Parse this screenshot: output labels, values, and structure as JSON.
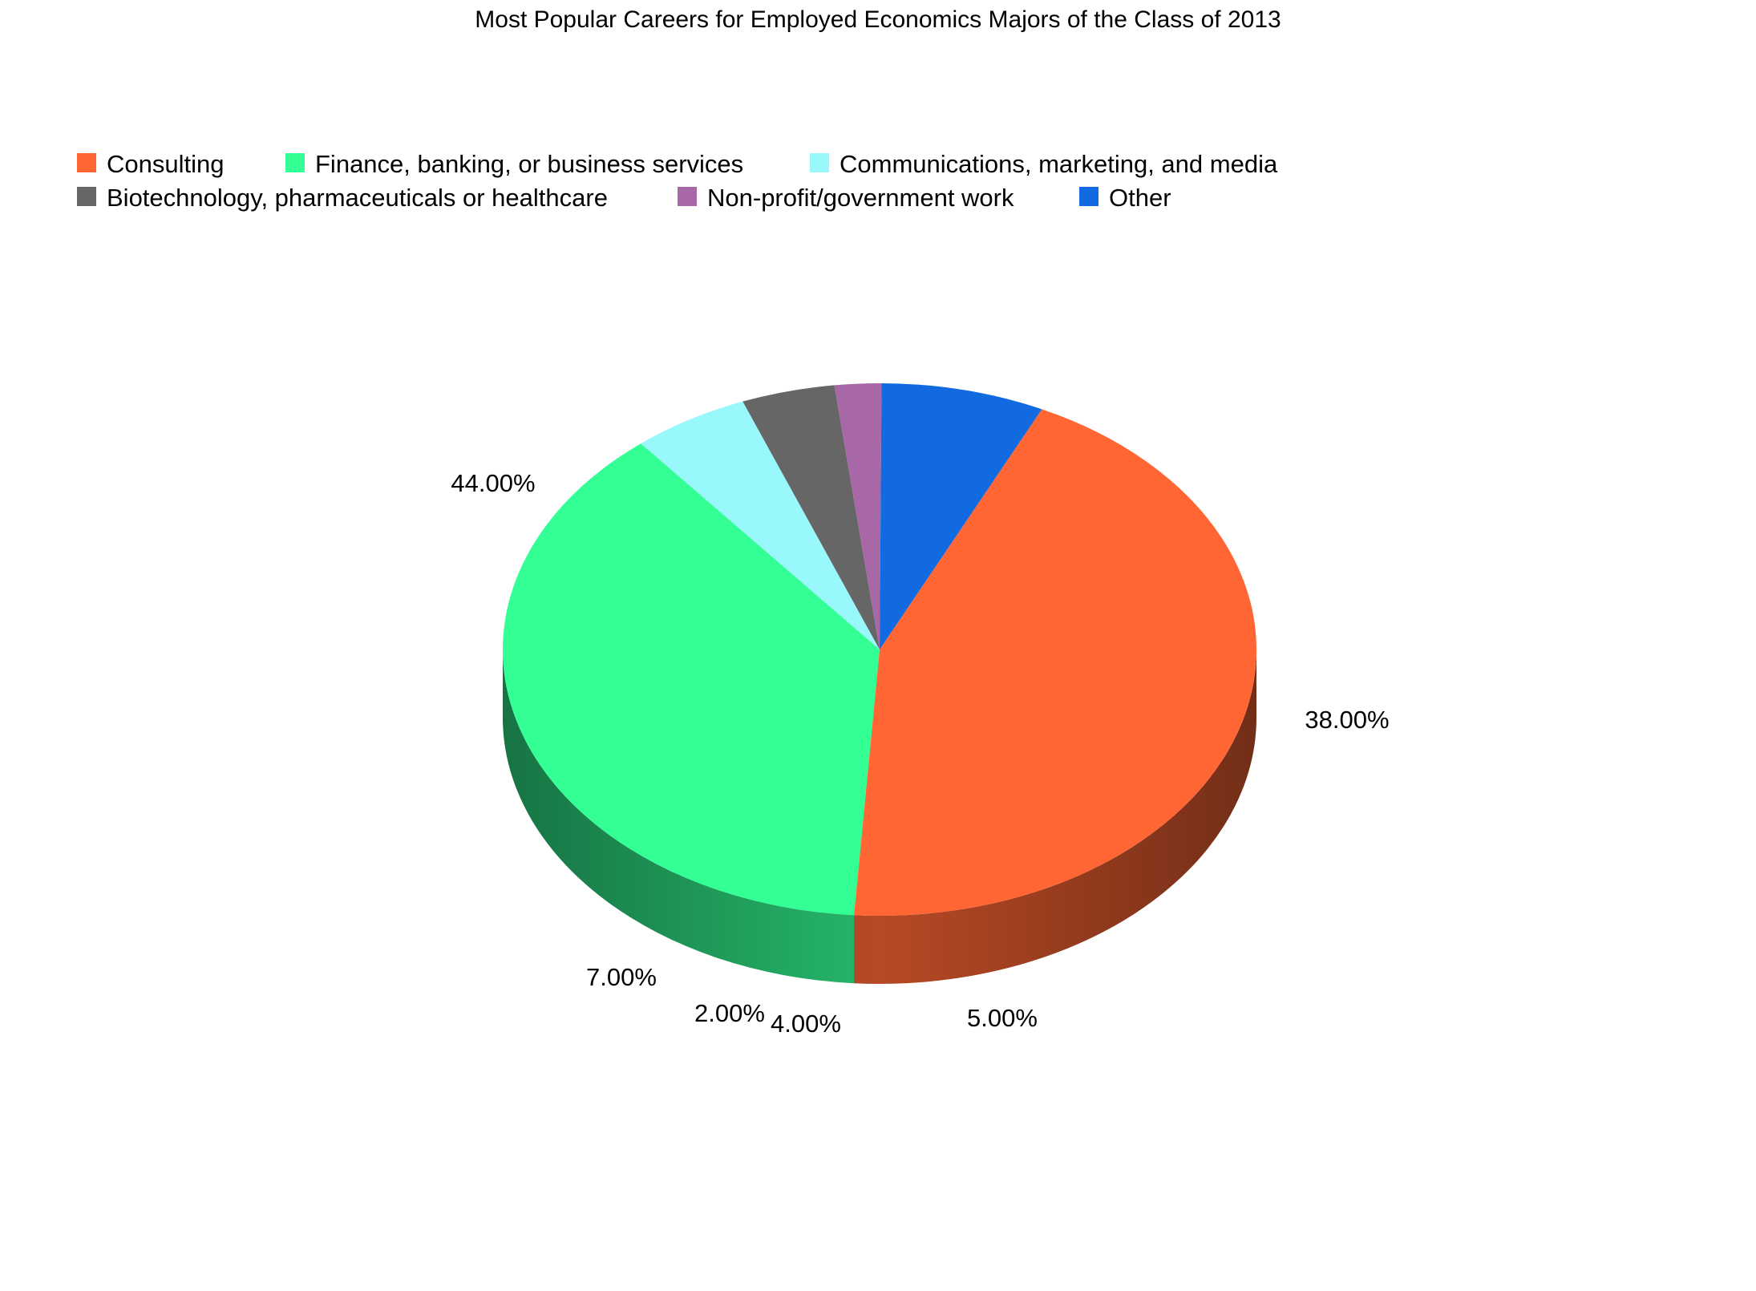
{
  "chart_data": {
    "type": "pie",
    "style": "3d",
    "title": "Most Popular Careers for Employed Economics Majors of the Class of 2013",
    "legend_position": "top-left",
    "categories": [
      "Consulting",
      "Finance, banking, or business services",
      "Communications, marketing, and media",
      "Biotechnology, pharmaceuticals or healthcare",
      "Non-profit/government work",
      "Other"
    ],
    "values": [
      44,
      38,
      5,
      4,
      2,
      7
    ],
    "value_labels": [
      "44.00%",
      "38.00%",
      "5.00%",
      "4.00%",
      "2.00%",
      "7.00%"
    ],
    "colors": [
      "#ff6633",
      "#33ff94",
      "#99f8fc",
      "#666666",
      "#a868a8",
      "#116ae0"
    ],
    "unit": "%"
  }
}
